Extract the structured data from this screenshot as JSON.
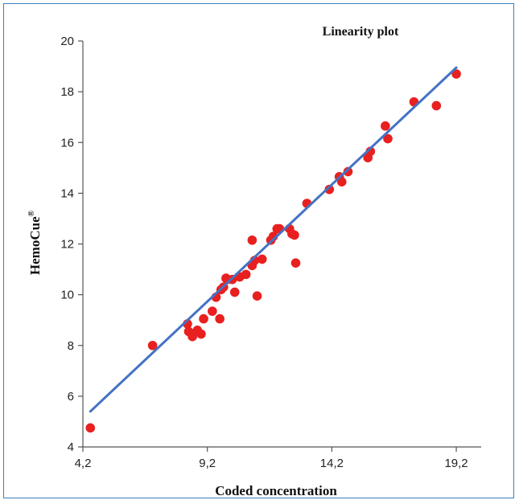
{
  "chart_data": {
    "type": "scatter",
    "title": "Linearity plot",
    "xlabel": "Coded concentration",
    "ylabel": "HemoCue",
    "ylabel_superscript": "®",
    "xlim": [
      4.2,
      20.2
    ],
    "ylim": [
      4,
      20
    ],
    "xticks": [
      4.2,
      9.2,
      14.2,
      19.2
    ],
    "xtick_labels": [
      "4,2",
      "9,2",
      "14,2",
      "19,2"
    ],
    "yticks": [
      4,
      6,
      8,
      10,
      12,
      14,
      16,
      18,
      20
    ],
    "ytick_labels": [
      "4",
      "6",
      "8",
      "10",
      "12",
      "14",
      "16",
      "18",
      "20"
    ],
    "grid": false,
    "series": [
      {
        "color": "#e8201f",
        "x": [
          4.5,
          7.0,
          8.4,
          8.45,
          8.6,
          8.8,
          8.95,
          9.05,
          9.4,
          9.55,
          9.7,
          9.75,
          9.85,
          9.95,
          10.0,
          10.2,
          10.3,
          10.5,
          10.75,
          11.0,
          11.0,
          11.1,
          11.2,
          11.4,
          11.75,
          11.85,
          12.0,
          12.1,
          12.5,
          12.6,
          12.7,
          12.75,
          13.2,
          14.1,
          14.5,
          14.6,
          14.85,
          15.65,
          15.75,
          16.35,
          16.45,
          17.5,
          18.4,
          19.2
        ],
        "y": [
          4.75,
          8.0,
          8.85,
          8.55,
          8.35,
          8.6,
          8.45,
          9.05,
          9.35,
          9.9,
          9.05,
          10.2,
          10.3,
          10.65,
          10.6,
          10.6,
          10.1,
          10.7,
          10.8,
          12.15,
          11.15,
          11.35,
          9.95,
          11.4,
          12.15,
          12.3,
          12.6,
          12.6,
          12.6,
          12.4,
          12.35,
          11.25,
          13.6,
          14.15,
          14.65,
          14.45,
          14.85,
          15.4,
          15.65,
          16.65,
          16.15,
          17.6,
          17.45,
          18.7
        ]
      }
    ],
    "trendline": {
      "color": "#4472c4",
      "x": [
        4.5,
        19.2
      ],
      "y": [
        5.4,
        18.95
      ]
    }
  }
}
